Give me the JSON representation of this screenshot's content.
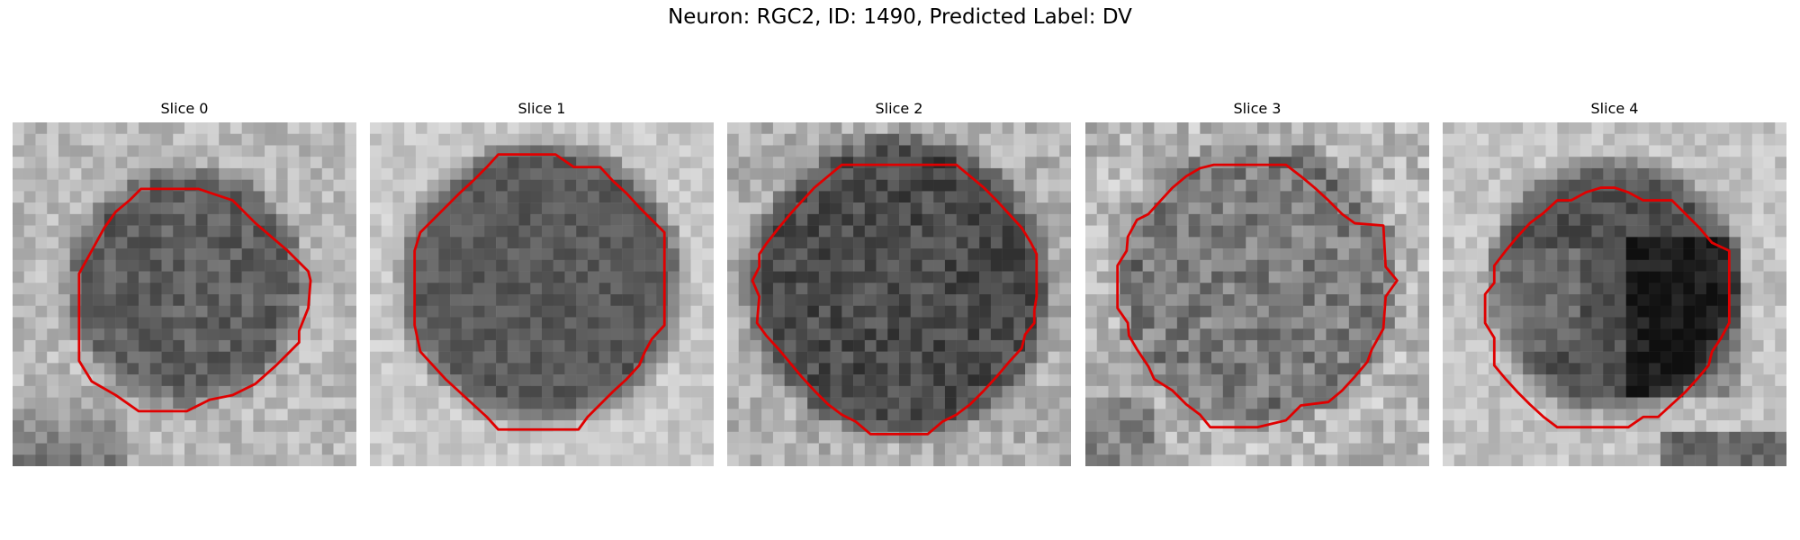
{
  "figure": {
    "title": "Neuron: RGC2, ID: 1490, Predicted Label: DV"
  },
  "panels": [
    {
      "title": "Slice 0"
    },
    {
      "title": "Slice 1"
    },
    {
      "title": "Slice 2"
    },
    {
      "title": "Slice 3"
    },
    {
      "title": "Slice 4"
    }
  ],
  "style": {
    "outline_color": "#e00000"
  }
}
